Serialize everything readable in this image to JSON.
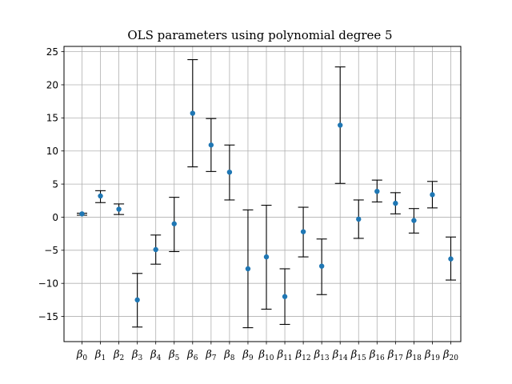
{
  "chart_data": {
    "type": "scatter",
    "title": "OLS parameters using polynomial degree 5",
    "xlabel": "",
    "ylabel": "",
    "ylim": [
      -18.8,
      25.8
    ],
    "yticks": [
      -15,
      -10,
      -5,
      0,
      5,
      10,
      15,
      20,
      25
    ],
    "grid": true,
    "categories": [
      {
        "base": "β",
        "sub": "0"
      },
      {
        "base": "β",
        "sub": "1"
      },
      {
        "base": "β",
        "sub": "2"
      },
      {
        "base": "β",
        "sub": "3"
      },
      {
        "base": "β",
        "sub": "4"
      },
      {
        "base": "β",
        "sub": "5"
      },
      {
        "base": "β",
        "sub": "6"
      },
      {
        "base": "β",
        "sub": "7"
      },
      {
        "base": "β",
        "sub": "8"
      },
      {
        "base": "β",
        "sub": "9"
      },
      {
        "base": "β",
        "sub": "10"
      },
      {
        "base": "β",
        "sub": "11"
      },
      {
        "base": "β",
        "sub": "12"
      },
      {
        "base": "β",
        "sub": "13"
      },
      {
        "base": "β",
        "sub": "14"
      },
      {
        "base": "β",
        "sub": "15"
      },
      {
        "base": "β",
        "sub": "16"
      },
      {
        "base": "β",
        "sub": "17"
      },
      {
        "base": "β",
        "sub": "18"
      },
      {
        "base": "β",
        "sub": "19"
      },
      {
        "base": "β",
        "sub": "20"
      }
    ],
    "values": [
      0.5,
      3.2,
      1.2,
      -12.5,
      -4.9,
      -1.0,
      15.7,
      10.9,
      6.8,
      -7.8,
      -6.0,
      -12.0,
      -2.2,
      -7.4,
      13.9,
      -0.3,
      3.9,
      2.1,
      -0.5,
      3.4,
      -6.3
    ],
    "lower": [
      0.3,
      2.2,
      0.4,
      -16.6,
      -7.1,
      -5.2,
      7.6,
      6.9,
      2.6,
      -16.7,
      -13.9,
      -16.2,
      -6.0,
      -11.7,
      5.1,
      -3.2,
      2.3,
      0.5,
      -2.4,
      1.4,
      -9.5
    ],
    "upper": [
      0.6,
      4.0,
      2.0,
      -8.5,
      -2.7,
      3.0,
      23.8,
      14.9,
      10.9,
      1.1,
      1.8,
      -7.8,
      1.5,
      -3.3,
      22.7,
      2.6,
      5.6,
      3.7,
      1.3,
      5.4,
      -3.0
    ],
    "colors": {
      "point": "#1f77b4",
      "errorbar": "#000000",
      "grid": "#b0b0b0",
      "axis": "#000000"
    }
  }
}
